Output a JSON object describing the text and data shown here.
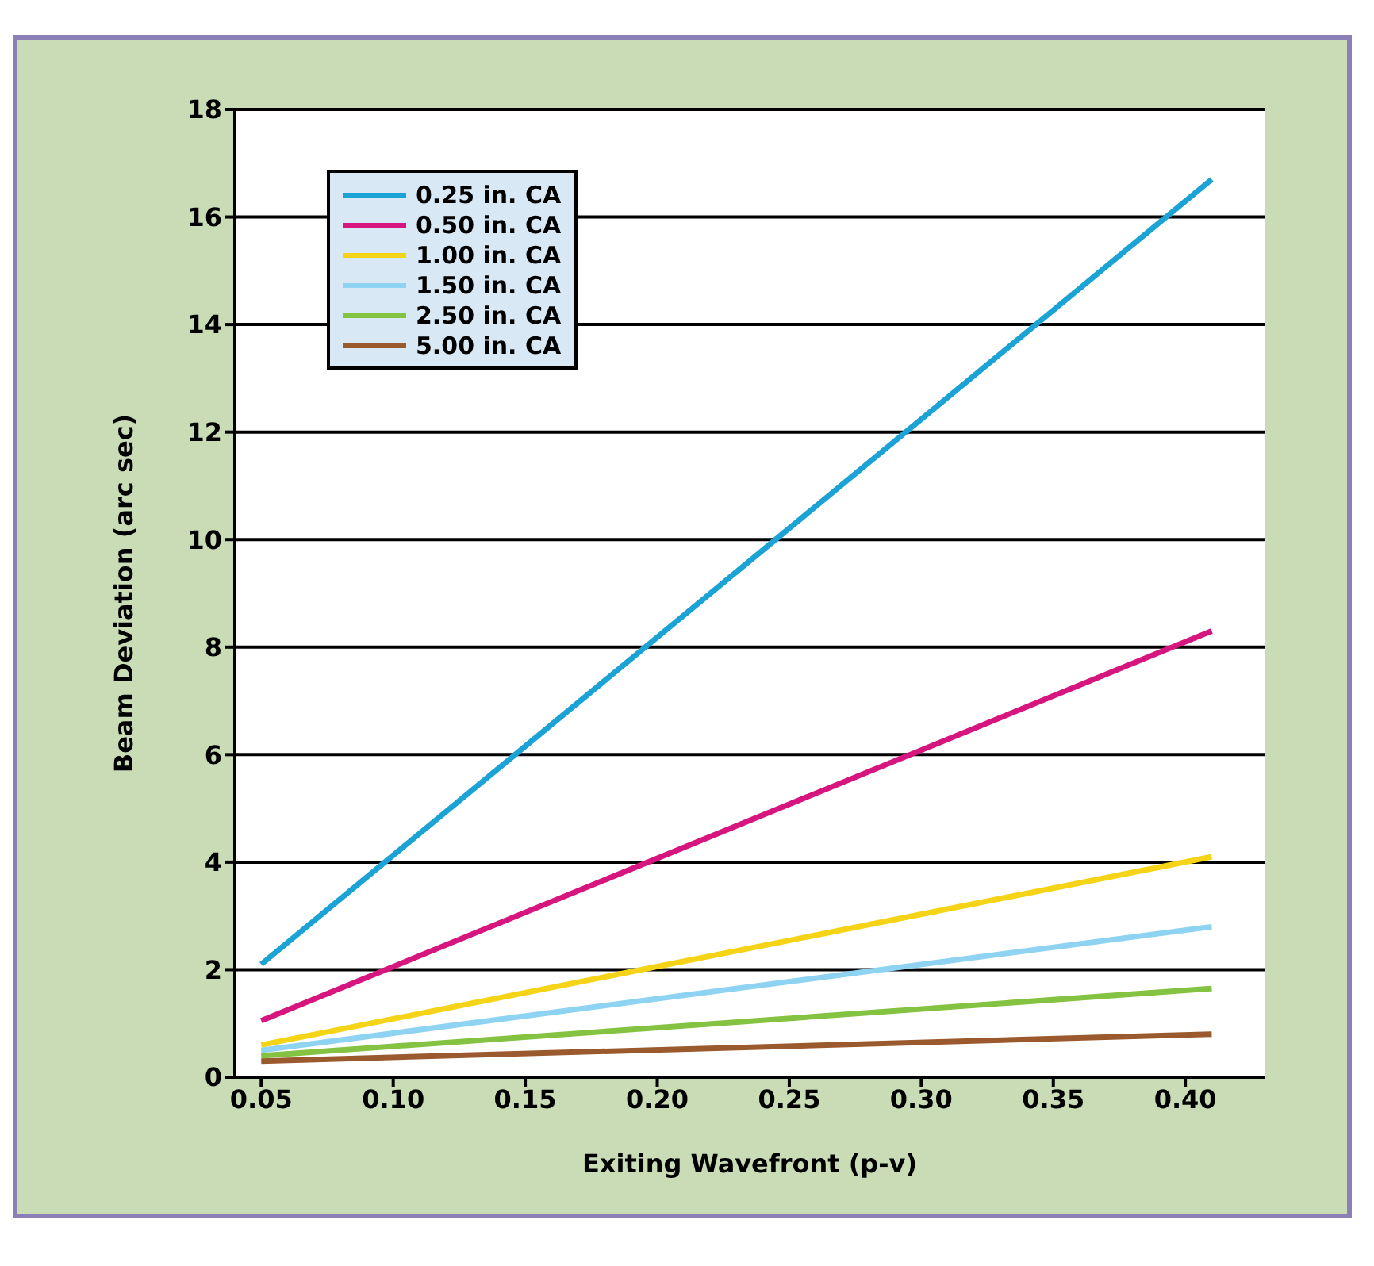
{
  "chart_data": {
    "type": "line",
    "xlabel": "Exiting Wavefront (p-v)",
    "ylabel": "Beam Deviation (arc sec)",
    "x": [
      0.05,
      0.41
    ],
    "series": [
      {
        "name": "0.25 in. CA",
        "color": "#1ba3d6",
        "values": [
          2.1,
          16.7
        ]
      },
      {
        "name": "0.50 in. CA",
        "color": "#d6157e",
        "values": [
          1.05,
          8.3
        ]
      },
      {
        "name": "1.00 in. CA",
        "color": "#f5d316",
        "values": [
          0.6,
          4.1
        ]
      },
      {
        "name": "1.50 in. CA",
        "color": "#8fd3f2",
        "values": [
          0.5,
          2.8
        ]
      },
      {
        "name": "2.50 in. CA",
        "color": "#84c341",
        "values": [
          0.4,
          1.65
        ]
      },
      {
        "name": "5.00 in. CA",
        "color": "#9b5a2e",
        "values": [
          0.3,
          0.8
        ]
      }
    ],
    "xlim": [
      0.04,
      0.43
    ],
    "xticks": [
      {
        "value": 0.05,
        "label": "0.05"
      },
      {
        "value": 0.1,
        "label": "0.10"
      },
      {
        "value": 0.15,
        "label": "0.15"
      },
      {
        "value": 0.2,
        "label": "0.20"
      },
      {
        "value": 0.25,
        "label": "0.25"
      },
      {
        "value": 0.3,
        "label": "0.30"
      },
      {
        "value": 0.35,
        "label": "0.35"
      },
      {
        "value": 0.4,
        "label": "0.40"
      }
    ],
    "ylim": [
      0,
      18
    ],
    "yticks": [
      0,
      2,
      4,
      6,
      8,
      10,
      12,
      14,
      16,
      18
    ],
    "grid": "y",
    "legend": "top left",
    "marker": "none",
    "line_style": "solid"
  }
}
